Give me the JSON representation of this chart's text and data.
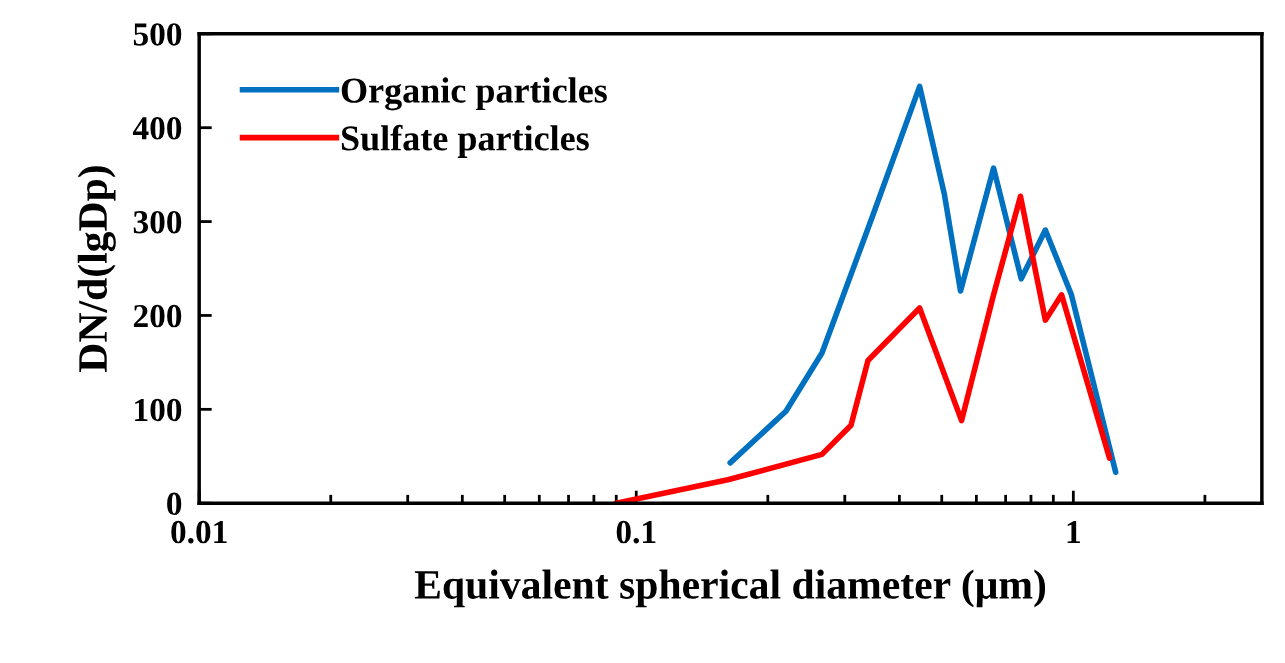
{
  "chart_data": {
    "type": "line",
    "xlabel": "Equivalent spherical diameter (μm)",
    "ylabel": "DN/d(lgDp)",
    "log": "x",
    "xlim": [
      0.01,
      2.7
    ],
    "xticks": [
      0.01,
      0.1,
      1
    ],
    "ylim": [
      0,
      500
    ],
    "yticks": [
      0,
      100,
      200,
      300,
      400,
      500
    ],
    "grid": false,
    "legend": "top left",
    "marker": "none",
    "line_style": "solid",
    "series": [
      {
        "name": "Organic particles",
        "color": "#0070c0",
        "x": [
          0.164,
          0.22,
          0.266,
          0.348,
          0.445,
          0.507,
          0.552,
          0.657,
          0.76,
          0.863,
          0.99,
          1.25
        ],
        "values": [
          43,
          98,
          160,
          307,
          444,
          329,
          226,
          357,
          239,
          291,
          222,
          33
        ]
      },
      {
        "name": "Sulfate particles",
        "color": "#ff0000",
        "x": [
          0.09,
          0.162,
          0.266,
          0.31,
          0.339,
          0.445,
          0.555,
          0.657,
          0.757,
          0.863,
          0.94,
          1.21
        ],
        "values": [
          0,
          25,
          52,
          83,
          152,
          208,
          88,
          222,
          327,
          195,
          222,
          48
        ]
      }
    ]
  }
}
